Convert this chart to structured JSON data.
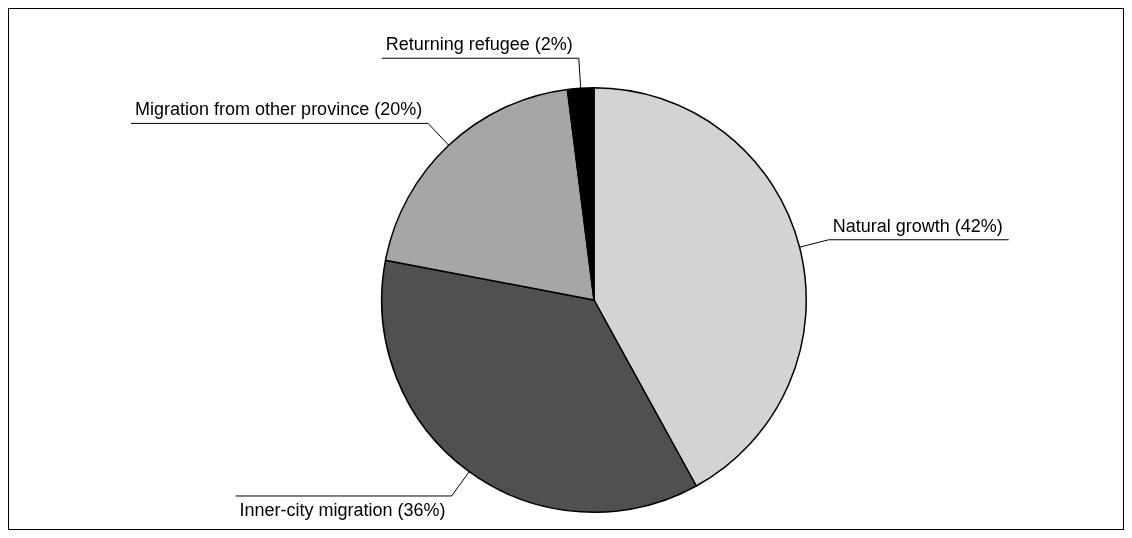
{
  "chart_data": {
    "type": "pie",
    "categories": [
      "Natural growth",
      "Inner-city migration",
      "Migration from other province",
      "Returning refugee"
    ],
    "values": [
      42,
      36,
      20,
      2
    ],
    "value_labels": [
      "(42%)",
      "(36%)",
      "(20%)",
      "(2%)"
    ],
    "colors": [
      "#d3d3d3",
      "#505050",
      "#a6a6a6",
      "#000000"
    ],
    "legend": false
  }
}
